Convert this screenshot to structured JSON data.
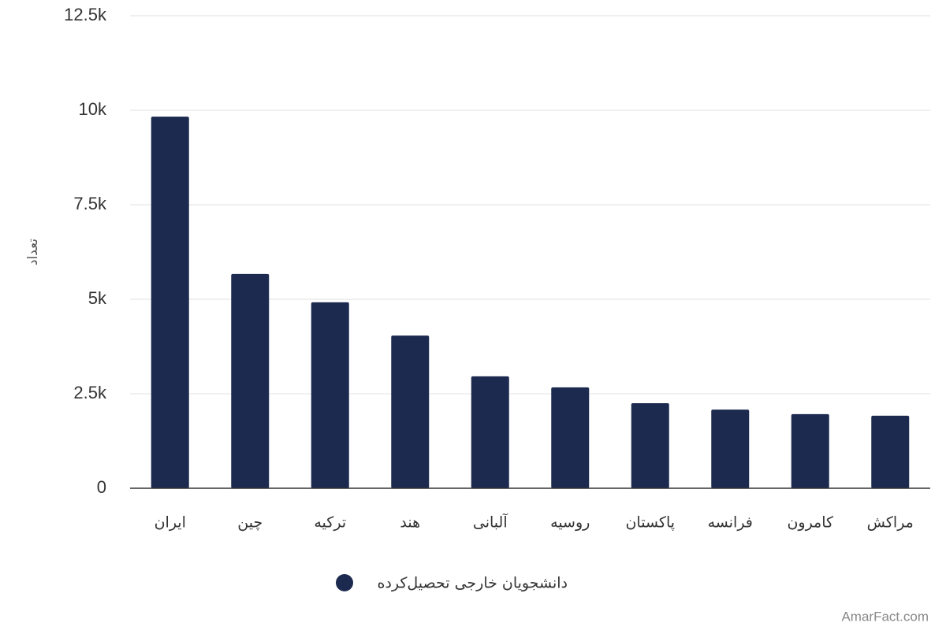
{
  "chart_data": {
    "type": "bar",
    "y_label": "تعداد",
    "categories": [
      "ایران",
      "چین",
      "ترکیه",
      "هند",
      "آلبانی",
      "روسیه",
      "پاکستان",
      "فرانسه",
      "کامرون",
      "مراکش"
    ],
    "series": [
      {
        "name": "دانشجویان خارجی تحصیل‌کرده",
        "color": "#1b2a4e",
        "values": [
          9830,
          5670,
          4920,
          4040,
          2960,
          2670,
          2250,
          2080,
          1960,
          1920
        ]
      }
    ],
    "ylim": [
      0,
      12500
    ],
    "yticks": [
      0,
      {
        "value": 2500,
        "label": "2.5k"
      },
      {
        "value": 5000,
        "label": "5k"
      },
      {
        "value": 7500,
        "label": "7.5k"
      },
      {
        "value": 10000,
        "label": "10k"
      },
      {
        "value": 12500,
        "label": "12.5k"
      }
    ],
    "grid": true,
    "legend": "bottom",
    "watermark": "AmarFact.com"
  }
}
